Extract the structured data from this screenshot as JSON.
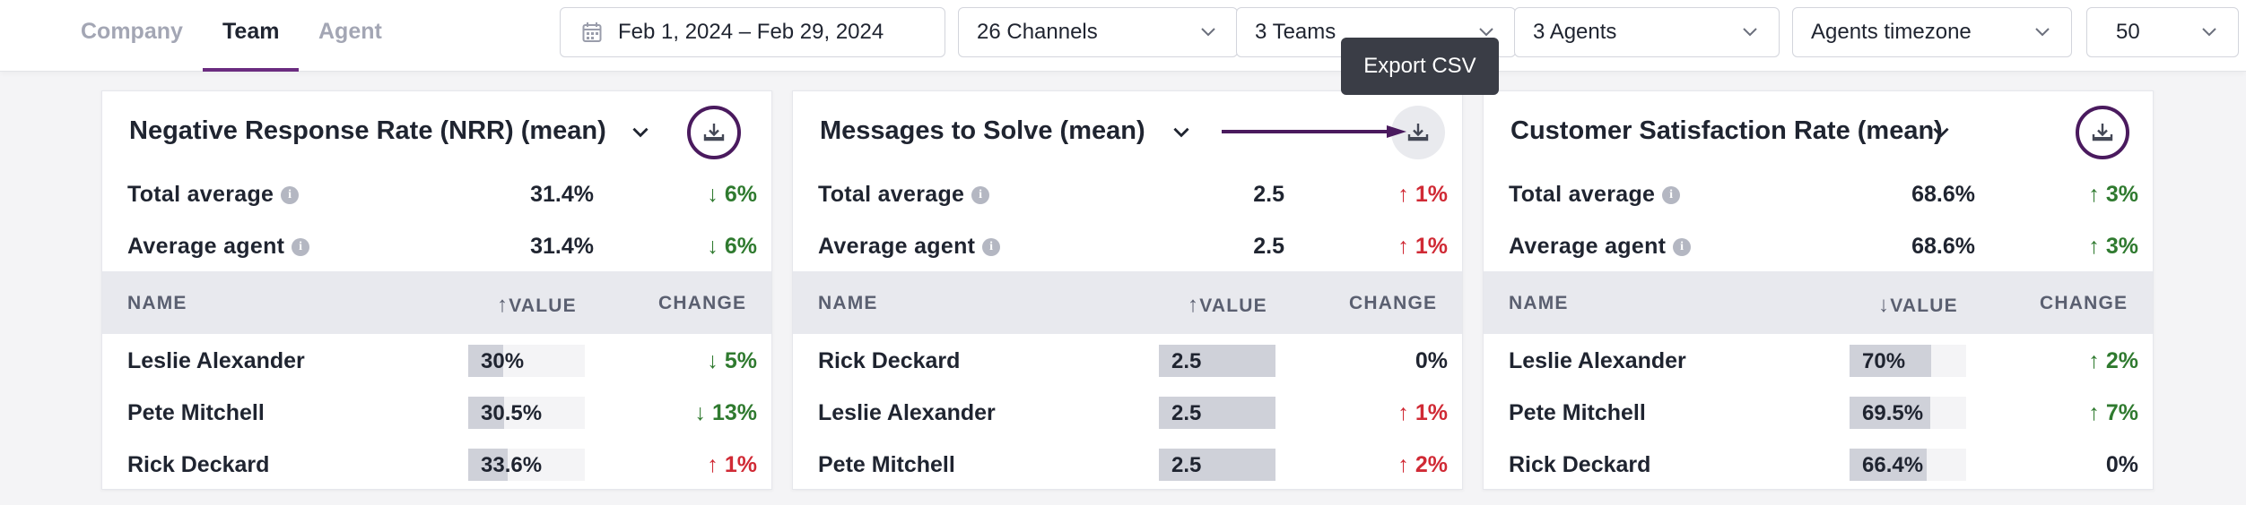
{
  "nav": {
    "tabs": [
      "Company",
      "Team",
      "Agent"
    ],
    "active": "Team"
  },
  "filters": {
    "date_range": "Feb 1, 2024 – Feb 29, 2024",
    "channels": "26 Channels",
    "teams": "3 Teams",
    "agents": "3 Agents",
    "timezone": "Agents timezone",
    "page_size": "50"
  },
  "tooltip": "Export CSV",
  "labels": {
    "total_average": "Total average",
    "average_agent": "Average agent",
    "col_name": "NAME",
    "col_value": "VALUE",
    "col_change": "CHANGE"
  },
  "cards": [
    {
      "title": "Negative Response Rate (NRR) (mean)",
      "total_average": "31.4%",
      "total_change": "6%",
      "total_dir": "down",
      "avg_agent": "31.4%",
      "agent_change": "6%",
      "agent_dir": "down",
      "sort": "asc",
      "rows": [
        {
          "name": "Leslie Alexander",
          "value": "30%",
          "fill": 0.3,
          "change": "5%",
          "dir": "down"
        },
        {
          "name": "Pete Mitchell",
          "value": "30.5%",
          "fill": 0.305,
          "change": "13%",
          "dir": "down"
        },
        {
          "name": "Rick Deckard",
          "value": "33.6%",
          "fill": 0.336,
          "change": "1%",
          "dir": "up"
        }
      ]
    },
    {
      "title": "Messages to Solve (mean)",
      "total_average": "2.5",
      "total_change": "1%",
      "total_dir": "up",
      "avg_agent": "2.5",
      "agent_change": "1%",
      "agent_dir": "up",
      "sort": "asc",
      "rows": [
        {
          "name": "Rick Deckard",
          "value": "2.5",
          "fill": 1.0,
          "change": "0%",
          "dir": "flat"
        },
        {
          "name": "Leslie Alexander",
          "value": "2.5",
          "fill": 1.0,
          "change": "1%",
          "dir": "up"
        },
        {
          "name": "Pete Mitchell",
          "value": "2.5",
          "fill": 1.0,
          "change": "2%",
          "dir": "up"
        }
      ]
    },
    {
      "title": "Customer Satisfaction Rate (mean)",
      "total_average": "68.6%",
      "total_change": "3%",
      "total_dir": "down_good",
      "avg_agent": "68.6%",
      "agent_change": "3%",
      "agent_dir": "down_good",
      "sort": "desc",
      "rows": [
        {
          "name": "Leslie Alexander",
          "value": "70%",
          "fill": 0.7,
          "change": "2%",
          "dir": "up_good"
        },
        {
          "name": "Pete Mitchell",
          "value": "69.5%",
          "fill": 0.695,
          "change": "7%",
          "dir": "up_good"
        },
        {
          "name": "Rick Deckard",
          "value": "66.4%",
          "fill": 0.664,
          "change": "0%",
          "dir": "flat"
        }
      ]
    }
  ],
  "colors": {
    "accent": "#6b2c80",
    "ring": "#4a1a5e",
    "good": "#2f7a2f",
    "bad": "#d02a35"
  }
}
